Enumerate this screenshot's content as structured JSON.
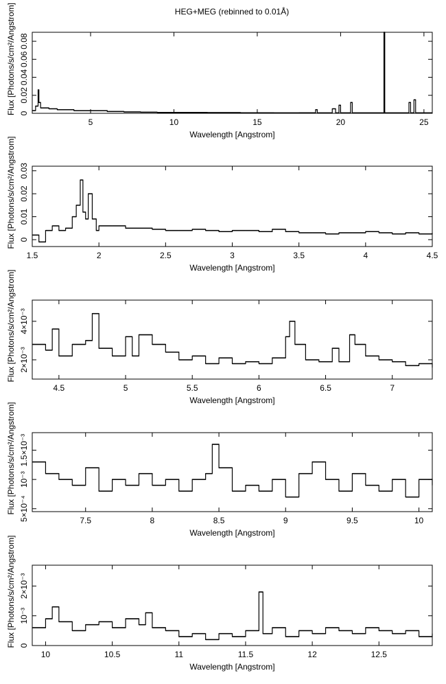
{
  "title": "HEG+MEG (rebinned to 0.01Å)",
  "chart_data": [
    {
      "type": "line",
      "xlabel": "Wavelength [Angstrom]",
      "ylabel": "Flux [Photons/s/cm²/Angstrom]",
      "x": [
        1.5,
        1.7,
        1.85,
        1.9,
        2.0,
        2.5,
        3,
        4,
        5,
        6,
        7,
        8,
        9,
        10,
        12,
        14,
        16,
        17.5,
        18.5,
        18.6,
        19.5,
        19.7,
        19.9,
        20,
        20.6,
        20.7,
        22.6,
        22.65,
        24.1,
        24.2,
        24.4,
        24.5,
        25.5
      ],
      "values": [
        0.003,
        0.008,
        0.026,
        0.012,
        0.006,
        0.005,
        0.004,
        0.003,
        0.003,
        0.002,
        0.0015,
        0.0012,
        0.001,
        0.001,
        0.0008,
        0.0006,
        0.0005,
        0.0006,
        0.004,
        0.0005,
        0.005,
        0.0005,
        0.009,
        0.0005,
        0.012,
        0.0005,
        0.09,
        0.0005,
        0.012,
        0.0005,
        0.015,
        0.0005,
        0.0005
      ],
      "xlim": [
        1.5,
        25.5
      ],
      "xticks": [
        5,
        10,
        15,
        20,
        25
      ],
      "ylim": [
        0,
        0.09
      ],
      "yticks": [
        0,
        0.02,
        0.04,
        0.06,
        0.08
      ],
      "color": "#000000"
    },
    {
      "type": "line",
      "xlabel": "Wavelength [Angstrom]",
      "ylabel": "Flux [Photons/s/cm²/Angstrom]",
      "x": [
        1.5,
        1.55,
        1.6,
        1.65,
        1.7,
        1.75,
        1.8,
        1.83,
        1.86,
        1.88,
        1.9,
        1.92,
        1.95,
        1.98,
        2.0,
        2.1,
        2.2,
        2.3,
        2.4,
        2.5,
        2.6,
        2.7,
        2.8,
        2.9,
        3.0,
        3.1,
        3.2,
        3.3,
        3.4,
        3.5,
        3.6,
        3.7,
        3.8,
        3.9,
        4.0,
        4.1,
        4.2,
        4.3,
        4.4,
        4.5
      ],
      "values": [
        0.002,
        -0.001,
        0.004,
        0.006,
        0.004,
        0.005,
        0.01,
        0.015,
        0.026,
        0.012,
        0.009,
        0.02,
        0.009,
        0.004,
        0.006,
        0.006,
        0.005,
        0.005,
        0.0045,
        0.004,
        0.004,
        0.0045,
        0.004,
        0.0035,
        0.004,
        0.004,
        0.0035,
        0.0045,
        0.0035,
        0.003,
        0.003,
        0.0025,
        0.003,
        0.003,
        0.0035,
        0.003,
        0.0025,
        0.003,
        0.0025,
        0.003
      ],
      "xlim": [
        1.5,
        4.5
      ],
      "xticks": [
        1.5,
        2,
        2.5,
        3,
        3.5,
        4,
        4.5
      ],
      "ylim": [
        -0.003,
        0.032
      ],
      "yticks": [
        0,
        0.01,
        0.02,
        0.03
      ],
      "color": "#000000"
    },
    {
      "type": "line",
      "xlabel": "Wavelength [Angstrom]",
      "ylabel": "Flux [Photons/s/cm²/Angstrom]",
      "x": [
        4.3,
        4.4,
        4.45,
        4.5,
        4.6,
        4.7,
        4.75,
        4.8,
        4.9,
        5.0,
        5.05,
        5.1,
        5.2,
        5.3,
        5.4,
        5.5,
        5.6,
        5.7,
        5.8,
        5.9,
        6.0,
        6.1,
        6.2,
        6.23,
        6.27,
        6.35,
        6.45,
        6.55,
        6.6,
        6.68,
        6.72,
        6.8,
        6.9,
        7.0,
        7.1,
        7.2,
        7.3
      ],
      "values": [
        0.0028,
        0.0025,
        0.0036,
        0.0022,
        0.0028,
        0.003,
        0.0044,
        0.0026,
        0.0022,
        0.0032,
        0.0022,
        0.0033,
        0.0028,
        0.0024,
        0.002,
        0.0022,
        0.0018,
        0.0021,
        0.0018,
        0.0019,
        0.0018,
        0.0021,
        0.0032,
        0.004,
        0.0028,
        0.002,
        0.0019,
        0.0026,
        0.0019,
        0.0033,
        0.0028,
        0.0022,
        0.002,
        0.0019,
        0.0017,
        0.0018,
        0.0016
      ],
      "xlim": [
        4.3,
        7.3
      ],
      "xticks": [
        4.5,
        5,
        5.5,
        6,
        6.5,
        7
      ],
      "ylim": [
        0.001,
        0.0051
      ],
      "yticks": [
        {
          "value": 0.002,
          "label": "2×10⁻³"
        },
        {
          "value": 0.004,
          "label": "4×10⁻³"
        }
      ],
      "color": "#000000"
    },
    {
      "type": "line",
      "xlabel": "Wavelength [Angstrom]",
      "ylabel": "Flux [Photons/s/cm²/Angstrom]",
      "x": [
        7.1,
        7.2,
        7.3,
        7.4,
        7.5,
        7.6,
        7.7,
        7.8,
        7.9,
        8.0,
        8.1,
        8.2,
        8.3,
        8.4,
        8.45,
        8.5,
        8.6,
        8.7,
        8.8,
        8.9,
        9.0,
        9.1,
        9.2,
        9.3,
        9.4,
        9.5,
        9.6,
        9.7,
        9.8,
        9.9,
        10.0,
        10.1
      ],
      "values": [
        0.0013,
        0.0011,
        0.001,
        0.0009,
        0.0012,
        0.0008,
        0.001,
        0.0009,
        0.0011,
        0.0009,
        0.001,
        0.0008,
        0.001,
        0.0011,
        0.0016,
        0.0012,
        0.0008,
        0.0009,
        0.0008,
        0.001,
        0.0007,
        0.0011,
        0.0013,
        0.001,
        0.0008,
        0.0011,
        0.0009,
        0.0008,
        0.001,
        0.0007,
        0.001,
        0.0009
      ],
      "xlim": [
        7.1,
        10.1
      ],
      "xticks": [
        7.5,
        8,
        8.5,
        9,
        9.5,
        10
      ],
      "ylim": [
        0.00045,
        0.0018
      ],
      "yticks": [
        {
          "value": 0.0005,
          "label": "5×10⁻⁴"
        },
        {
          "value": 0.001,
          "label": "10⁻³"
        },
        {
          "value": 0.0015,
          "label": "1.5×10⁻³"
        }
      ],
      "color": "#000000"
    },
    {
      "type": "line",
      "xlabel": "Wavelength [Angstrom]",
      "ylabel": "Flux [Photons/s/cm²/Angstrom]",
      "x": [
        9.9,
        10.0,
        10.05,
        10.1,
        10.2,
        10.3,
        10.4,
        10.5,
        10.6,
        10.7,
        10.75,
        10.8,
        10.9,
        11.0,
        11.1,
        11.2,
        11.3,
        11.4,
        11.5,
        11.6,
        11.63,
        11.7,
        11.8,
        11.9,
        12.0,
        12.1,
        12.2,
        12.3,
        12.4,
        12.5,
        12.6,
        12.7,
        12.8,
        12.9
      ],
      "values": [
        0.0006,
        0.0009,
        0.0013,
        0.0008,
        0.0005,
        0.0007,
        0.0008,
        0.0006,
        0.0009,
        0.0007,
        0.0011,
        0.0006,
        0.0005,
        0.0003,
        0.0004,
        0.0002,
        0.0004,
        0.0003,
        0.0005,
        0.0018,
        0.0004,
        0.0006,
        0.0003,
        0.0005,
        0.0004,
        0.0006,
        0.0005,
        0.0004,
        0.0006,
        0.0005,
        0.0004,
        0.0005,
        0.0003,
        0.0004
      ],
      "xlim": [
        9.9,
        12.9
      ],
      "xticks": [
        10,
        10.5,
        11,
        11.5,
        12,
        12.5
      ],
      "ylim": [
        0,
        0.0027
      ],
      "yticks": [
        0,
        {
          "value": 0.001,
          "label": "10⁻³"
        },
        {
          "value": 0.002,
          "label": "2×10⁻³"
        }
      ],
      "color": "#000000"
    }
  ]
}
